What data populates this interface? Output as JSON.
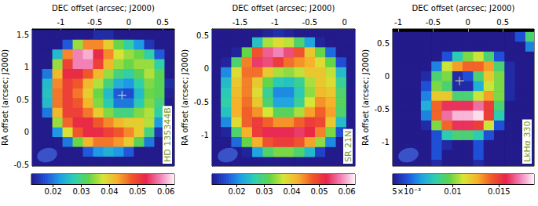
{
  "chart_data": [
    {
      "type": "heatmap",
      "title": "HD 135344B",
      "x_label": "DEC offset (arcsec; J2000)",
      "y_label": "RA offset (arcsec; J2000)",
      "xlim": [
        -1.42,
        0.67
      ],
      "ylim": [
        -0.52,
        1.59
      ],
      "xticks": [
        -1,
        -0.5,
        0,
        0.5
      ],
      "yticks": [
        -0.5,
        0,
        0.5,
        1,
        1.5
      ],
      "x": [
        -1.35,
        -1.2,
        -1.05,
        -0.9,
        -0.75,
        -0.6,
        -0.45,
        -0.3,
        -0.15,
        0,
        0.15,
        0.3,
        0.45,
        0.6
      ],
      "y": [
        1.5,
        1.35,
        1.2,
        1.05,
        0.9,
        0.75,
        0.6,
        0.45,
        0.3,
        0.15,
        0,
        -0.15,
        -0.3,
        -0.45
      ],
      "values": [
        [
          0.004,
          0.004,
          0.004,
          0.004,
          0.008,
          0.012,
          0.014,
          0.014,
          0.012,
          0.008,
          0.004,
          0.004,
          0.004,
          0.004
        ],
        [
          0.004,
          0.004,
          0.006,
          0.018,
          0.035,
          0.045,
          0.045,
          0.04,
          0.033,
          0.028,
          0.022,
          0.015,
          0.006,
          0.004
        ],
        [
          0.004,
          0.008,
          0.025,
          0.045,
          0.058,
          0.06,
          0.052,
          0.045,
          0.038,
          0.035,
          0.033,
          0.028,
          0.018,
          0.006
        ],
        [
          0.004,
          0.012,
          0.035,
          0.05,
          0.058,
          0.058,
          0.05,
          0.042,
          0.035,
          0.033,
          0.035,
          0.035,
          0.028,
          0.01
        ],
        [
          0.005,
          0.02,
          0.042,
          0.052,
          0.052,
          0.048,
          0.042,
          0.035,
          0.03,
          0.028,
          0.032,
          0.036,
          0.032,
          0.012
        ],
        [
          0.006,
          0.025,
          0.045,
          0.05,
          0.048,
          0.042,
          0.036,
          0.03,
          0.024,
          0.022,
          0.028,
          0.034,
          0.032,
          0.014
        ],
        [
          0.006,
          0.026,
          0.046,
          0.05,
          0.046,
          0.04,
          0.033,
          0.025,
          0.018,
          0.017,
          0.025,
          0.033,
          0.032,
          0.013
        ],
        [
          0.005,
          0.025,
          0.046,
          0.05,
          0.048,
          0.042,
          0.034,
          0.027,
          0.02,
          0.02,
          0.027,
          0.034,
          0.03,
          0.012
        ],
        [
          0.004,
          0.02,
          0.042,
          0.05,
          0.05,
          0.046,
          0.04,
          0.034,
          0.03,
          0.03,
          0.034,
          0.036,
          0.028,
          0.008
        ],
        [
          0.004,
          0.012,
          0.035,
          0.047,
          0.052,
          0.052,
          0.048,
          0.045,
          0.042,
          0.04,
          0.04,
          0.036,
          0.022,
          0.005
        ],
        [
          0.004,
          0.006,
          0.022,
          0.038,
          0.048,
          0.052,
          0.052,
          0.05,
          0.048,
          0.045,
          0.04,
          0.03,
          0.015,
          0.004
        ],
        [
          0.004,
          0.004,
          0.008,
          0.02,
          0.033,
          0.042,
          0.046,
          0.046,
          0.044,
          0.04,
          0.032,
          0.02,
          0.008,
          0.004
        ],
        [
          0.004,
          0.004,
          0.004,
          0.004,
          0.01,
          0.018,
          0.022,
          0.024,
          0.022,
          0.018,
          0.012,
          0.004,
          0.004,
          0.004
        ],
        [
          0.004,
          0.004,
          0.004,
          0.004,
          0.004,
          0.004,
          0.004,
          0.004,
          0.004,
          0.004,
          0.004,
          0.004,
          0.004,
          0.004
        ]
      ],
      "colorbar": {
        "range": [
          0.0123,
          0.063
        ],
        "ticks": [
          0.02,
          0.03,
          0.04,
          0.05,
          0.06
        ]
      },
      "star": [
        -0.1,
        0.57
      ]
    },
    {
      "type": "heatmap",
      "title": "SR 21N",
      "x_label": "DEC offset (arcsec; J2000)",
      "y_label": "RA offset (arcsec; J2000)",
      "xlim": [
        -1.9,
        0.15
      ],
      "ylim": [
        -1.46,
        0.6
      ],
      "xticks": [
        -1.5,
        -1,
        -0.5,
        0
      ],
      "yticks": [
        -1,
        -0.5,
        0,
        0.5
      ],
      "x": [
        -1.85,
        -1.7,
        -1.55,
        -1.4,
        -1.25,
        -1.1,
        -0.95,
        -0.8,
        -0.65,
        -0.5,
        -0.35,
        -0.2,
        -0.05,
        0.1
      ],
      "y": [
        0.55,
        0.4,
        0.25,
        0.1,
        -0.05,
        -0.2,
        -0.35,
        -0.5,
        -0.65,
        -0.8,
        -0.95,
        -1.1,
        -1.25,
        -1.4
      ],
      "values": [
        [
          0.004,
          0.004,
          0.004,
          0.004,
          0.006,
          0.012,
          0.013,
          0.012,
          0.008,
          0.005,
          0.004,
          0.004,
          0.004,
          0.004
        ],
        [
          0.004,
          0.004,
          0.004,
          0.01,
          0.025,
          0.035,
          0.038,
          0.036,
          0.03,
          0.022,
          0.012,
          0.005,
          0.004,
          0.004
        ],
        [
          0.004,
          0.004,
          0.012,
          0.032,
          0.048,
          0.056,
          0.058,
          0.055,
          0.048,
          0.04,
          0.032,
          0.018,
          0.006,
          0.004
        ],
        [
          0.004,
          0.012,
          0.03,
          0.045,
          0.054,
          0.055,
          0.05,
          0.046,
          0.044,
          0.042,
          0.038,
          0.032,
          0.016,
          0.004
        ],
        [
          0.006,
          0.02,
          0.038,
          0.046,
          0.046,
          0.04,
          0.035,
          0.034,
          0.036,
          0.04,
          0.04,
          0.036,
          0.024,
          0.007
        ],
        [
          0.008,
          0.024,
          0.04,
          0.045,
          0.04,
          0.032,
          0.026,
          0.025,
          0.028,
          0.035,
          0.04,
          0.038,
          0.028,
          0.01
        ],
        [
          0.01,
          0.026,
          0.041,
          0.045,
          0.038,
          0.028,
          0.02,
          0.02,
          0.026,
          0.034,
          0.041,
          0.04,
          0.03,
          0.011
        ],
        [
          0.01,
          0.027,
          0.042,
          0.046,
          0.04,
          0.03,
          0.022,
          0.022,
          0.028,
          0.037,
          0.044,
          0.042,
          0.031,
          0.011
        ],
        [
          0.008,
          0.025,
          0.042,
          0.047,
          0.044,
          0.037,
          0.031,
          0.031,
          0.035,
          0.043,
          0.047,
          0.043,
          0.03,
          0.009
        ],
        [
          0.005,
          0.02,
          0.038,
          0.047,
          0.05,
          0.047,
          0.044,
          0.044,
          0.047,
          0.05,
          0.049,
          0.04,
          0.024,
          0.006
        ],
        [
          0.004,
          0.012,
          0.03,
          0.042,
          0.05,
          0.053,
          0.053,
          0.053,
          0.054,
          0.052,
          0.045,
          0.033,
          0.016,
          0.004
        ],
        [
          0.004,
          0.005,
          0.018,
          0.032,
          0.042,
          0.048,
          0.05,
          0.05,
          0.048,
          0.043,
          0.034,
          0.02,
          0.007,
          0.004
        ],
        [
          0.004,
          0.004,
          0.004,
          0.012,
          0.022,
          0.03,
          0.033,
          0.033,
          0.03,
          0.024,
          0.015,
          0.006,
          0.004,
          0.004
        ],
        [
          0.004,
          0.004,
          0.004,
          0.004,
          0.004,
          0.006,
          0.01,
          0.01,
          0.008,
          0.004,
          0.004,
          0.004,
          0.004,
          0.004
        ]
      ],
      "colorbar": {
        "range": [
          0.011,
          0.063
        ],
        "ticks": [
          0.02,
          0.03,
          0.04,
          0.05,
          0.06
        ]
      }
    },
    {
      "type": "heatmap",
      "title": "LkHα 330",
      "x_label": "DEC offset (arcsec; J2000)",
      "y_label": "RA offset (arcsec; J2000)",
      "xlim": [
        -1.08,
        0.95
      ],
      "ylim": [
        -1.37,
        0.72
      ],
      "xticks": [
        -1,
        -0.5,
        0,
        0.5
      ],
      "yticks": [
        -1,
        -0.5,
        0,
        0.5
      ],
      "x": [
        -1.05,
        -0.9,
        -0.75,
        -0.6,
        -0.45,
        -0.3,
        -0.15,
        0,
        0.15,
        0.3,
        0.45,
        0.6,
        0.75,
        0.9
      ],
      "y": [
        0.6,
        0.45,
        0.3,
        0.15,
        0,
        -0.15,
        -0.3,
        -0.45,
        -0.6,
        -0.75,
        -0.9,
        -1.05,
        -1.2,
        -1.35
      ],
      "values": [
        [
          0.002,
          0.002,
          0.002,
          0.002,
          0.002,
          0.002,
          0.002,
          0.002,
          0.002,
          0.002,
          0.002,
          0.002,
          0.005,
          0.009
        ],
        [
          0.002,
          0.002,
          0.002,
          0.002,
          0.002,
          0.002,
          0.002,
          0.002,
          0.002,
          0.002,
          0.002,
          0.002,
          0.003,
          0.006
        ],
        [
          0.002,
          0.002,
          0.002,
          0.002,
          0.002,
          0.005,
          0.008,
          0.01,
          0.011,
          0.009,
          0.005,
          0.002,
          0.002,
          0.002
        ],
        [
          0.002,
          0.002,
          0.002,
          0.002,
          0.006,
          0.011,
          0.013,
          0.014,
          0.014,
          0.013,
          0.009,
          0.004,
          0.002,
          0.002
        ],
        [
          0.002,
          0.002,
          0.002,
          0.004,
          0.009,
          0.01,
          0.004,
          0.005,
          0.009,
          0.012,
          0.01,
          0.004,
          0.002,
          0.002
        ],
        [
          0.002,
          0.002,
          0.002,
          0.005,
          0.01,
          0.009,
          0.004,
          0.004,
          0.007,
          0.011,
          0.01,
          0.004,
          0.002,
          0.002
        ],
        [
          0.002,
          0.002,
          0.002,
          0.006,
          0.012,
          0.012,
          0.009,
          0.009,
          0.011,
          0.013,
          0.01,
          0.004,
          0.002,
          0.002
        ],
        [
          0.002,
          0.002,
          0.002,
          0.007,
          0.014,
          0.016,
          0.016,
          0.016,
          0.017,
          0.015,
          0.009,
          0.003,
          0.002,
          0.002
        ],
        [
          0.002,
          0.002,
          0.002,
          0.006,
          0.014,
          0.017,
          0.018,
          0.018,
          0.0185,
          0.015,
          0.008,
          0.003,
          0.002,
          0.002
        ],
        [
          0.002,
          0.002,
          0.002,
          0.004,
          0.01,
          0.014,
          0.016,
          0.016,
          0.015,
          0.011,
          0.005,
          0.002,
          0.002,
          0.002
        ],
        [
          0.002,
          0.002,
          0.002,
          0.002,
          0.005,
          0.008,
          0.009,
          0.009,
          0.008,
          0.005,
          0.002,
          0.002,
          0.002,
          0.002
        ],
        [
          0.002,
          0.002,
          0.002,
          0.002,
          0.005,
          0.004,
          0.002,
          0.002,
          0.005,
          0.002,
          0.002,
          0.002,
          0.002,
          0.002
        ],
        [
          0.002,
          0.002,
          0.002,
          0.002,
          0.005,
          0.002,
          0.002,
          0.002,
          0.005,
          0.002,
          0.002,
          0.002,
          0.002,
          0.002
        ],
        [
          0.002,
          0.002,
          0.002,
          0.002,
          0.004,
          0.002,
          0.002,
          0.002,
          0.004,
          0.002,
          0.002,
          0.002,
          0.002,
          0.002
        ]
      ],
      "colorbar": {
        "range": [
          0.0035,
          0.0188
        ],
        "ticks": [
          {
            "value": 0.005,
            "label": "5×10⁻³"
          },
          0.01,
          0.015
        ]
      },
      "star": [
        -0.12,
        -0.07
      ]
    }
  ]
}
